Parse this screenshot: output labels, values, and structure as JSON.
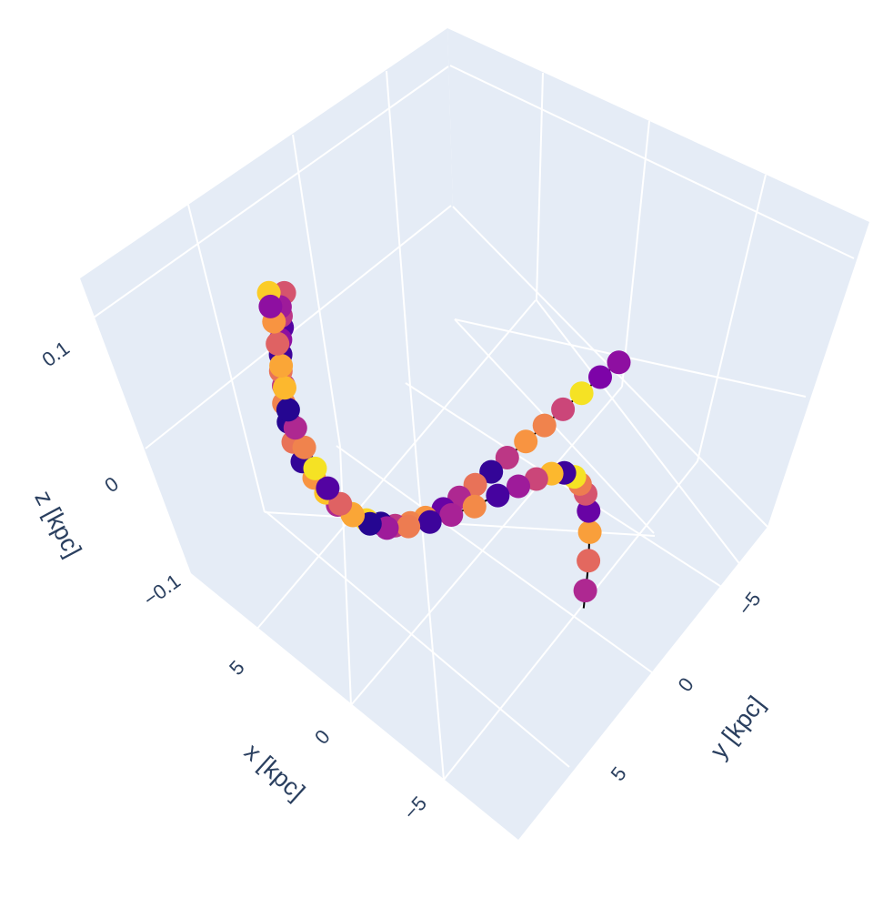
{
  "chart_data": {
    "type": "scatter",
    "mode": "3d",
    "title": "",
    "axes": {
      "x": {
        "label": "x [kpc]",
        "ticks": [
          "5",
          "0",
          "−5"
        ]
      },
      "y": {
        "label": "y [kpc]",
        "ticks": [
          "−5",
          "0",
          "5"
        ]
      },
      "z": {
        "label": "z [kpc]",
        "ticks": [
          "0.1",
          "0",
          "−0.1"
        ]
      }
    },
    "grid": true,
    "background_color": "#e5ecf6",
    "colorscale": "plasma",
    "line_color": "#000000",
    "points": [
      {
        "x": 6.2,
        "y": 2.1,
        "z": 0.102,
        "c": 0.55
      },
      {
        "x": 6.0,
        "y": 2.4,
        "z": 0.098,
        "c": 0.35
      },
      {
        "x": 5.8,
        "y": 2.5,
        "z": 0.095,
        "c": 0.45
      },
      {
        "x": 5.6,
        "y": 2.6,
        "z": 0.09,
        "c": 0.15
      },
      {
        "x": 5.4,
        "y": 2.8,
        "z": 0.086,
        "c": 0.3
      },
      {
        "x": 5.1,
        "y": 3.0,
        "z": 0.081,
        "c": 0.1
      },
      {
        "x": 4.8,
        "y": 3.2,
        "z": 0.075,
        "c": 0.65
      },
      {
        "x": 4.5,
        "y": 3.3,
        "z": 0.069,
        "c": 0.45
      },
      {
        "x": 4.2,
        "y": 3.5,
        "z": 0.062,
        "c": 0.7
      },
      {
        "x": 3.8,
        "y": 3.6,
        "z": 0.054,
        "c": 0.05
      },
      {
        "x": 3.4,
        "y": 3.7,
        "z": 0.045,
        "c": 0.65
      },
      {
        "x": 2.9,
        "y": 3.7,
        "z": 0.036,
        "c": 0.08
      },
      {
        "x": 2.4,
        "y": 3.6,
        "z": 0.028,
        "c": 0.75
      },
      {
        "x": 1.9,
        "y": 3.5,
        "z": 0.021,
        "c": 0.88
      },
      {
        "x": 1.4,
        "y": 3.4,
        "z": 0.016,
        "c": 0.4
      },
      {
        "x": 0.9,
        "y": 3.2,
        "z": 0.012,
        "c": 0.82
      },
      {
        "x": 0.4,
        "y": 3.0,
        "z": 0.01,
        "c": 0.92
      },
      {
        "x": -0.1,
        "y": 2.8,
        "z": 0.01,
        "c": 0.05
      },
      {
        "x": -0.6,
        "y": 2.6,
        "z": 0.011,
        "c": 0.45
      },
      {
        "x": -1.0,
        "y": 2.3,
        "z": 0.013,
        "c": 0.7
      },
      {
        "x": -1.4,
        "y": 2.0,
        "z": 0.017,
        "c": 0.75
      },
      {
        "x": -1.8,
        "y": 1.6,
        "z": 0.022,
        "c": 0.2
      },
      {
        "x": -2.1,
        "y": 1.2,
        "z": 0.028,
        "c": 0.4
      },
      {
        "x": -2.4,
        "y": 0.8,
        "z": 0.035,
        "c": 0.65
      },
      {
        "x": -2.7,
        "y": 0.4,
        "z": 0.042,
        "c": 0.08
      },
      {
        "x": -3.0,
        "y": 0.0,
        "z": 0.05,
        "c": 0.45
      },
      {
        "x": -3.3,
        "y": -0.5,
        "z": 0.058,
        "c": 0.75
      },
      {
        "x": -3.6,
        "y": -1.0,
        "z": 0.066,
        "c": 0.7
      },
      {
        "x": -3.9,
        "y": -1.5,
        "z": 0.074,
        "c": 0.5
      },
      {
        "x": -4.2,
        "y": -2.0,
        "z": 0.082,
        "c": 0.95
      },
      {
        "x": -4.5,
        "y": -2.5,
        "z": 0.09,
        "c": 0.25
      },
      {
        "x": -4.8,
        "y": -3.0,
        "z": 0.097,
        "c": 0.3
      },
      {
        "x": 7.2,
        "y": 2.0,
        "z": 0.09,
        "c": 0.9
      },
      {
        "x": 7.4,
        "y": 1.8,
        "z": 0.075,
        "c": 0.3
      },
      {
        "x": 7.5,
        "y": 1.6,
        "z": 0.06,
        "c": 0.75
      },
      {
        "x": 7.6,
        "y": 1.4,
        "z": 0.04,
        "c": 0.6
      },
      {
        "x": 7.7,
        "y": 1.2,
        "z": 0.02,
        "c": 0.8
      },
      {
        "x": 7.8,
        "y": 1.0,
        "z": 0.0,
        "c": 0.85
      },
      {
        "x": 7.9,
        "y": 0.8,
        "z": -0.02,
        "c": 0.05
      },
      {
        "x": 7.8,
        "y": 0.6,
        "z": -0.035,
        "c": 0.4
      },
      {
        "x": 7.6,
        "y": 0.4,
        "z": -0.05,
        "c": 0.7
      },
      {
        "x": 7.3,
        "y": 0.2,
        "z": -0.065,
        "c": 0.95
      },
      {
        "x": 6.9,
        "y": 0.0,
        "z": -0.078,
        "c": 0.15
      },
      {
        "x": 6.5,
        "y": -0.2,
        "z": -0.088,
        "c": 0.6
      },
      {
        "x": 6.1,
        "y": -0.4,
        "z": -0.095,
        "c": 0.8
      },
      {
        "x": 5.6,
        "y": -0.7,
        "z": -0.1,
        "c": 0.05
      },
      {
        "x": 5.1,
        "y": -1.0,
        "z": -0.102,
        "c": 0.35
      },
      {
        "x": 4.5,
        "y": -1.4,
        "z": -0.1,
        "c": 0.68
      },
      {
        "x": 3.9,
        "y": -1.8,
        "z": -0.096,
        "c": 0.1
      },
      {
        "x": 3.3,
        "y": -2.2,
        "z": -0.09,
        "c": 0.38
      },
      {
        "x": 2.6,
        "y": -2.6,
        "z": -0.082,
        "c": 0.72
      },
      {
        "x": 1.9,
        "y": -3.0,
        "z": -0.072,
        "c": 0.12
      },
      {
        "x": 1.2,
        "y": -3.3,
        "z": -0.062,
        "c": 0.35
      },
      {
        "x": 0.5,
        "y": -3.5,
        "z": -0.052,
        "c": 0.5
      },
      {
        "x": -0.2,
        "y": -3.6,
        "z": -0.042,
        "c": 0.85
      },
      {
        "x": -0.9,
        "y": -3.6,
        "z": -0.034,
        "c": 0.1
      },
      {
        "x": -1.6,
        "y": -3.5,
        "z": -0.028,
        "c": 0.95
      },
      {
        "x": -2.2,
        "y": -3.3,
        "z": -0.024,
        "c": 0.68
      },
      {
        "x": -2.8,
        "y": -3.1,
        "z": -0.022,
        "c": 0.55
      },
      {
        "x": -3.4,
        "y": -2.8,
        "z": -0.024,
        "c": 0.2
      },
      {
        "x": -3.9,
        "y": -2.5,
        "z": -0.03,
        "c": 0.78
      },
      {
        "x": -4.4,
        "y": -2.1,
        "z": -0.04,
        "c": 0.62
      },
      {
        "x": -4.8,
        "y": -1.7,
        "z": -0.052,
        "c": 0.4
      }
    ],
    "line": [
      {
        "x": 6.4,
        "y": 1.9,
        "z": 0.1
      },
      {
        "x": 5.6,
        "y": 2.6,
        "z": 0.09
      },
      {
        "x": 4.8,
        "y": 3.2,
        "z": 0.075
      },
      {
        "x": 3.8,
        "y": 3.6,
        "z": 0.054
      },
      {
        "x": 2.9,
        "y": 3.7,
        "z": 0.036
      },
      {
        "x": 1.9,
        "y": 3.5,
        "z": 0.021
      },
      {
        "x": 0.9,
        "y": 3.2,
        "z": 0.012
      },
      {
        "x": -0.1,
        "y": 2.8,
        "z": 0.01
      },
      {
        "x": -1.0,
        "y": 2.3,
        "z": 0.013
      },
      {
        "x": -1.8,
        "y": 1.6,
        "z": 0.022
      },
      {
        "x": -2.4,
        "y": 0.8,
        "z": 0.035
      },
      {
        "x": -3.0,
        "y": 0.0,
        "z": 0.05
      },
      {
        "x": -3.6,
        "y": -1.0,
        "z": 0.066
      },
      {
        "x": -4.2,
        "y": -2.0,
        "z": 0.082
      },
      {
        "x": -4.8,
        "y": -3.0,
        "z": 0.097
      }
    ],
    "line2": [
      {
        "x": 7.0,
        "y": 2.1,
        "z": 0.098
      },
      {
        "x": 7.5,
        "y": 1.6,
        "z": 0.06
      },
      {
        "x": 7.8,
        "y": 1.0,
        "z": 0.0
      },
      {
        "x": 7.8,
        "y": 0.6,
        "z": -0.035
      },
      {
        "x": 7.3,
        "y": 0.2,
        "z": -0.065
      },
      {
        "x": 6.5,
        "y": -0.2,
        "z": -0.088
      },
      {
        "x": 5.6,
        "y": -0.7,
        "z": -0.1
      },
      {
        "x": 4.5,
        "y": -1.4,
        "z": -0.1
      },
      {
        "x": 3.3,
        "y": -2.2,
        "z": -0.09
      },
      {
        "x": 1.9,
        "y": -3.0,
        "z": -0.072
      },
      {
        "x": 0.5,
        "y": -3.5,
        "z": -0.052
      },
      {
        "x": -0.9,
        "y": -3.6,
        "z": -0.034
      },
      {
        "x": -2.2,
        "y": -3.3,
        "z": -0.024
      },
      {
        "x": -3.4,
        "y": -2.8,
        "z": -0.024
      },
      {
        "x": -4.4,
        "y": -2.1,
        "z": -0.04
      },
      {
        "x": -5.0,
        "y": -1.5,
        "z": -0.06
      }
    ]
  }
}
